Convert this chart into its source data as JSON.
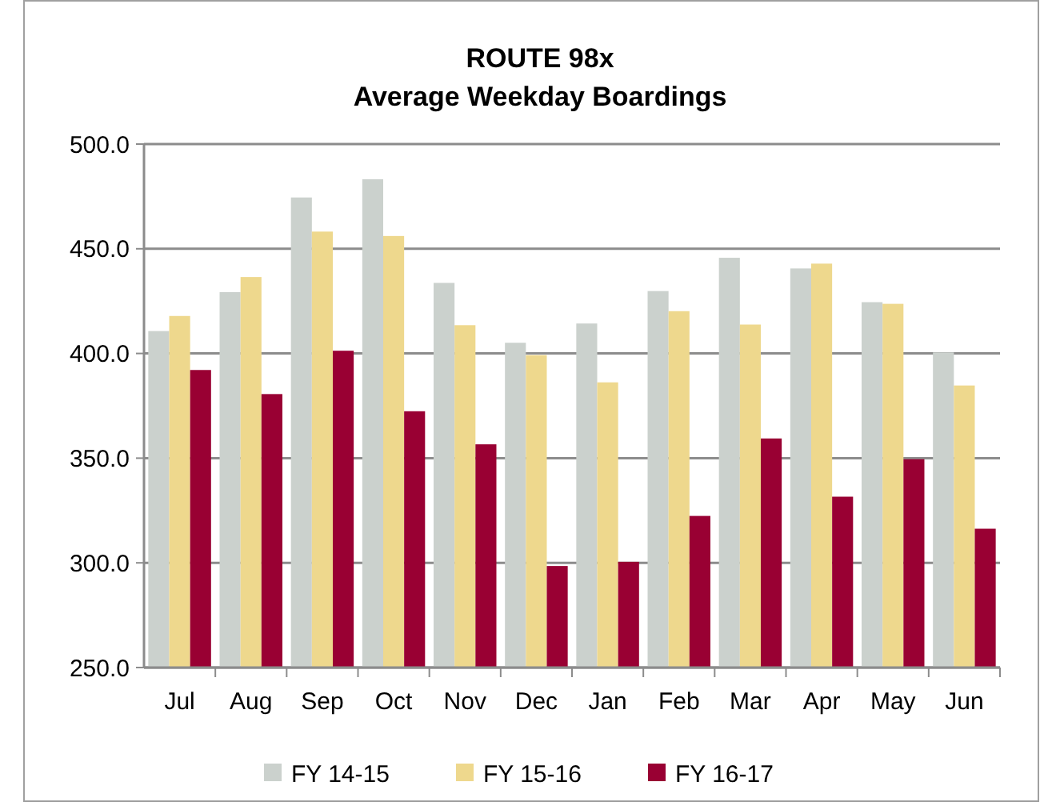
{
  "chart_data": {
    "type": "bar",
    "title": "ROUTE 98x\nAverage Weekday Boardings",
    "categories": [
      "Jul",
      "Aug",
      "Sep",
      "Oct",
      "Nov",
      "Dec",
      "Jan",
      "Feb",
      "Mar",
      "Apr",
      "May",
      "Jun"
    ],
    "series": [
      {
        "name": "FY 14-15",
        "color": "#cbd1cd",
        "values": [
          410.7,
          429.3,
          474.5,
          483.2,
          433.7,
          405.1,
          414.3,
          429.8,
          445.7,
          440.6,
          424.5,
          400.5
        ]
      },
      {
        "name": "FY 15-16",
        "color": "#eed88d",
        "values": [
          417.9,
          436.5,
          458.2,
          456.1,
          413.5,
          399.2,
          386.2,
          420.2,
          413.8,
          442.9,
          423.7,
          384.7
        ]
      },
      {
        "name": "FY 16-17",
        "color": "#990033",
        "values": [
          392.1,
          380.6,
          401.3,
          372.4,
          356.6,
          298.5,
          300.5,
          322.4,
          359.4,
          331.6,
          349.5,
          316.3
        ]
      }
    ],
    "ylim": [
      250,
      500
    ],
    "yticks": [
      {
        "value": 250,
        "label": "250.0"
      },
      {
        "value": 300,
        "label": "300.0"
      },
      {
        "value": 350,
        "label": "350.0"
      },
      {
        "value": 400,
        "label": "400.0"
      },
      {
        "value": 450,
        "label": "450.0"
      },
      {
        "value": 500,
        "label": "500.0"
      }
    ],
    "grid": "y",
    "legend": "bottom"
  }
}
